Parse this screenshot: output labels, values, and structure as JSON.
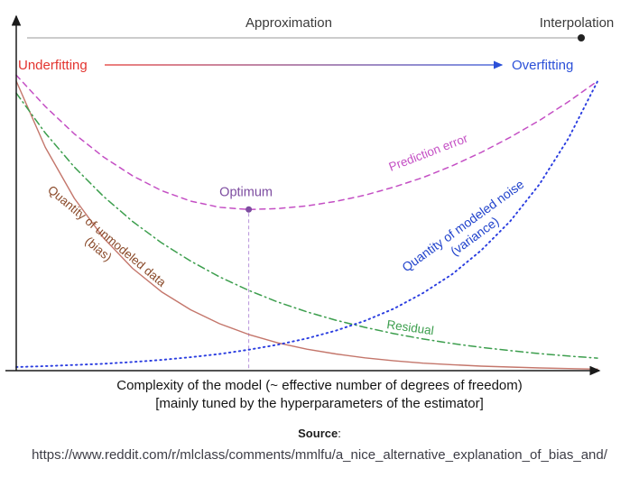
{
  "header": {
    "approximation": "Approximation",
    "interpolation": "Interpolation",
    "underfitting": "Underfitting",
    "overfitting": "Overfitting"
  },
  "colors": {
    "underfitting": "#e3342f",
    "overfitting": "#2b50d8",
    "top_text": "#3b3b3b",
    "axis": "#1a1a1a",
    "prediction_error_label": "#c44fc4",
    "bias_label": "#8a4a2a",
    "variance_label": "#2244cc",
    "residual_label": "#3c9e4d",
    "optimum": "#7d4ca0",
    "optimum_line": "#b793db"
  },
  "chart_data": {
    "type": "line",
    "title": "Bias-variance tradeoff versus model complexity",
    "xlabel_line1": "Complexity of the model (~ effective number of degrees of freedom)",
    "xlabel_line2": "[mainly tuned by the hyperparameters of the estimator]",
    "ylabel": "",
    "xlim": [
      0,
      1
    ],
    "ylim": [
      0,
      1
    ],
    "grid": false,
    "legend_position": "labels-on-curves",
    "x": [
      0,
      0.05,
      0.1,
      0.15,
      0.2,
      0.25,
      0.3,
      0.35,
      0.4,
      0.45,
      0.5,
      0.55,
      0.6,
      0.65,
      0.7,
      0.75,
      0.8,
      0.85,
      0.9,
      0.95,
      1
    ],
    "series": [
      {
        "name": "Quantity of unmodeled data (bias)",
        "style": "solid",
        "color": "#c4766b",
        "dash": null,
        "width": 1.4,
        "y": [
          0.97,
          0.748,
          0.577,
          0.445,
          0.343,
          0.264,
          0.204,
          0.157,
          0.121,
          0.093,
          0.072,
          0.056,
          0.043,
          0.033,
          0.025,
          0.02,
          0.015,
          0.012,
          0.009,
          0.007,
          0.005
        ]
      },
      {
        "name": "Residual",
        "style": "dash-dot",
        "color": "#3c9e4d",
        "dash": "8 4 1.5 4",
        "width": 1.5,
        "y": [
          0.93,
          0.796,
          0.682,
          0.584,
          0.5,
          0.428,
          0.367,
          0.314,
          0.269,
          0.23,
          0.197,
          0.169,
          0.145,
          0.124,
          0.106,
          0.091,
          0.078,
          0.067,
          0.057,
          0.049,
          0.042
        ]
      },
      {
        "name": "Quantity of modeled noise (variance)",
        "style": "dotted",
        "color": "#2a3de0",
        "dash": "1.5 4",
        "width": 1.9,
        "y": [
          0.012,
          0.015,
          0.019,
          0.023,
          0.029,
          0.036,
          0.045,
          0.056,
          0.07,
          0.087,
          0.108,
          0.134,
          0.167,
          0.208,
          0.26,
          0.323,
          0.403,
          0.501,
          0.624,
          0.778,
          0.969
        ]
      },
      {
        "name": "Prediction error",
        "style": "dashed",
        "color": "#c44fc4",
        "dash": "6 5",
        "width": 1.5,
        "y": [
          0.99,
          0.885,
          0.793,
          0.716,
          0.653,
          0.603,
          0.568,
          0.547,
          0.54,
          0.543,
          0.552,
          0.567,
          0.588,
          0.615,
          0.647,
          0.686,
          0.731,
          0.782,
          0.838,
          0.901,
          0.97
        ]
      }
    ],
    "optimum": {
      "label": "Optimum",
      "x": 0.4,
      "y": 0.54
    },
    "labels": {
      "bias_line1": "Quantity of unmodeled data",
      "bias_line2": "(bias)",
      "variance_line1": "Quantity of modeled noise",
      "variance_line2": "(variance)",
      "prediction": "Prediction error",
      "residual": "Residual"
    }
  },
  "footer": {
    "source_label": "Source",
    "source_colon": ":",
    "url": "https://www.reddit.com/r/mlclass/comments/mmlfu/a_nice_alternative_explanation_of_bias_and/"
  }
}
